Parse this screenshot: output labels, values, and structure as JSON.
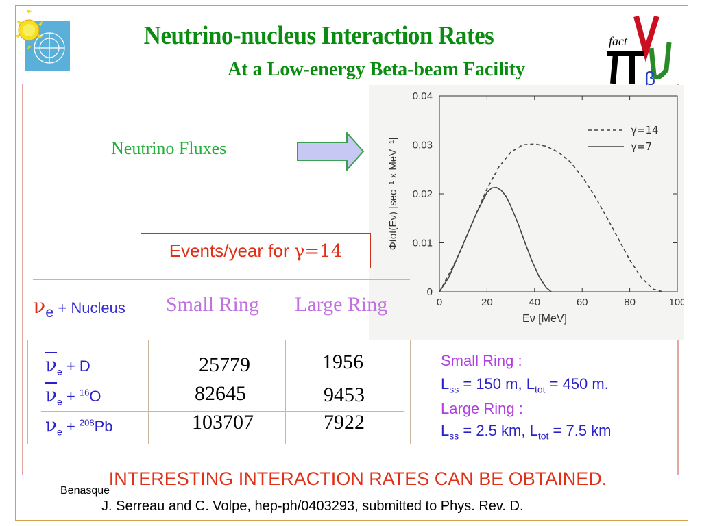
{
  "title": "Neutrino-nucleus Interaction Rates",
  "subtitle": "At a Low-energy Beta-beam Facility",
  "fluxes_label": "Neutrino Fluxes",
  "events_label": "Events/year for ",
  "events_gamma": "γ=14",
  "table": {
    "col0": {
      "nu": "ν",
      "sub": "e",
      "rest": " + Nucleus"
    },
    "col1": "Small Ring",
    "col2": "Large Ring",
    "rows": [
      {
        "nu": "ν",
        "sub": "e",
        "plus": " + ",
        "sup": "",
        "target": "D",
        "small": "25779",
        "large": "1956"
      },
      {
        "nu": "ν",
        "sub": "e",
        "plus": " + ",
        "sup": "16",
        "target": "O",
        "small": "82645",
        "large": "9453"
      },
      {
        "nu": "ν",
        "sub": "e",
        "plus": " + ",
        "sup": "208",
        "target": "Pb",
        "small": "103707",
        "large": "7922"
      }
    ]
  },
  "info": {
    "small_title": "Small Ring :",
    "small_l": "L",
    "small_ss": "ss",
    "small_eq1": " = 150 m, L",
    "small_tot": "tot",
    "small_eq2": " = 450 m.",
    "large_title": "Large Ring :",
    "large_l": "L",
    "large_ss": "ss",
    "large_eq1": " = 2.5 km, L",
    "large_tot": "tot",
    "large_eq2": " = 7.5 km"
  },
  "headline": "INTERESTING INTERACTION RATES CAN BE OBTAINED.",
  "footer": {
    "venue": "Benasque",
    "citation": "J. Serreau and C. Volpe, hep-ph/0403293, submitted to Phys. Rev. D."
  },
  "logo_right": {
    "text": "fact"
  },
  "colors": {
    "title_green": "#0a8c10",
    "red": "#e03018",
    "blue": "#2a22c8",
    "purple": "#b040e0"
  },
  "chart_data": {
    "type": "line",
    "xlabel": "Eν [MeV]",
    "ylabel": "Φtot(Eν) [sec⁻¹ x MeV⁻¹]",
    "xlim": [
      0,
      100
    ],
    "ylim": [
      0,
      0.04
    ],
    "xticks": [
      "0",
      "20",
      "40",
      "60",
      "80",
      "100"
    ],
    "yticks": [
      "0",
      "0.01",
      "0.02",
      "0.03",
      "0.04"
    ],
    "legend_position": "top-right",
    "series": [
      {
        "name": "γ=14",
        "style": "dashed",
        "x": [
          0,
          5,
          10,
          15,
          20,
          25,
          30,
          35,
          40,
          45,
          50,
          55,
          60,
          65,
          70,
          75,
          80,
          85,
          90,
          94
        ],
        "y": [
          0,
          0.0045,
          0.0095,
          0.0155,
          0.021,
          0.0255,
          0.0285,
          0.03,
          0.0302,
          0.0297,
          0.0285,
          0.0265,
          0.0235,
          0.0198,
          0.0155,
          0.011,
          0.0065,
          0.0028,
          0.0005,
          0
        ]
      },
      {
        "name": "γ=7",
        "style": "solid",
        "x": [
          0,
          4,
          8,
          12,
          16,
          20,
          22,
          24,
          26,
          28,
          30,
          33,
          36,
          39,
          42,
          45,
          47
        ],
        "y": [
          0,
          0.003,
          0.0075,
          0.012,
          0.0165,
          0.0203,
          0.0212,
          0.0213,
          0.0207,
          0.0195,
          0.0175,
          0.014,
          0.01,
          0.0062,
          0.003,
          0.0008,
          0
        ]
      }
    ]
  }
}
